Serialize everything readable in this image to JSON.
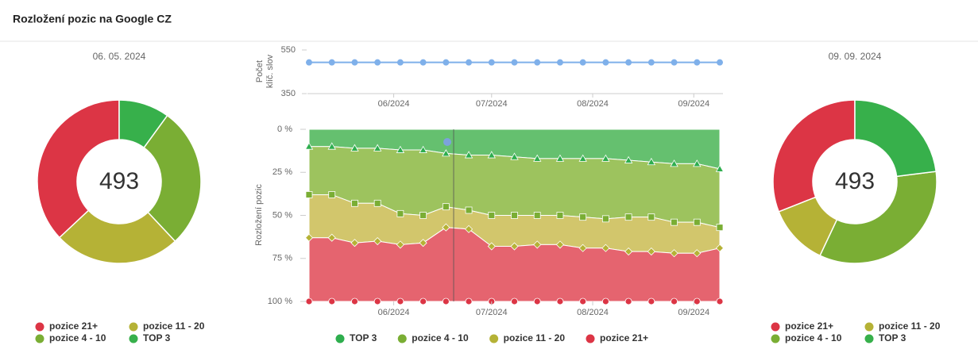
{
  "title": "Rozložení pozic na Google CZ",
  "chart_data": [
    {
      "type": "donut",
      "subtitle": "06. 05. 2024",
      "total": 493,
      "categories": [
        "pozice 21+",
        "pozice 11 - 20",
        "pozice 4 - 10",
        "TOP 3"
      ],
      "values": [
        37,
        25,
        28,
        10
      ],
      "colors": [
        "#dc3545",
        "#b5b236",
        "#7aae34",
        "#37b04b"
      ]
    },
    {
      "type": "line",
      "ylabel": [
        "Počet",
        "klíč. slov"
      ],
      "categories": [
        null,
        null,
        null,
        null,
        null,
        null,
        null,
        null,
        null,
        null,
        null,
        null,
        null,
        null,
        null,
        null,
        null,
        null,
        null
      ],
      "values": [
        493,
        493,
        493,
        493,
        493,
        493,
        493,
        493,
        493,
        493,
        493,
        493,
        493,
        493,
        493,
        493,
        493,
        493,
        493
      ],
      "color": "#7fb0ea",
      "ylim": [
        350,
        550
      ],
      "yticks": [
        350,
        550
      ],
      "xticks": [
        {
          "value": 3.71,
          "label": "06/2024"
        },
        {
          "value": 8,
          "label": "07/2024"
        },
        {
          "value": 12.43,
          "label": "08/2024"
        },
        {
          "value": 16.86,
          "label": "09/2024"
        }
      ]
    },
    {
      "type": "stacked_area",
      "ylabel": "Rozložení pozic",
      "categories": [
        null,
        null,
        null,
        null,
        null,
        null,
        null,
        null,
        null,
        null,
        null,
        null,
        null,
        null,
        null,
        null,
        null,
        null,
        null
      ],
      "series": [
        {
          "name": "TOP 3",
          "color": "#65c06f",
          "marker_color": "#2eae4e",
          "marker": "triangle",
          "values": [
            10,
            10,
            11,
            11,
            12,
            12,
            14,
            15,
            15,
            16,
            17,
            17,
            17,
            17,
            18,
            19,
            20,
            20,
            23
          ]
        },
        {
          "name": "pozice 4 - 10",
          "color": "#9dc35e",
          "marker_color": "#7aae34",
          "marker": "square",
          "values": [
            28,
            28,
            32,
            32,
            37,
            38,
            31,
            32,
            35,
            34,
            33,
            33,
            34,
            35,
            33,
            32,
            34,
            34,
            34
          ]
        },
        {
          "name": "pozice 11 - 20",
          "color": "#d2c66c",
          "marker_color": "#b5b236",
          "marker": "diamond",
          "values": [
            25,
            25,
            23,
            22,
            18,
            16,
            12,
            11,
            18,
            18,
            17,
            17,
            18,
            17,
            20,
            20,
            18,
            18,
            12
          ]
        },
        {
          "name": "pozice 21+",
          "color": "#e5646f",
          "marker_color": "#dc3545",
          "marker": "circle",
          "values": [
            37,
            37,
            34,
            35,
            33,
            34,
            43,
            42,
            32,
            32,
            33,
            33,
            31,
            31,
            29,
            29,
            28,
            28,
            31
          ]
        }
      ],
      "ylim": [
        100,
        0
      ],
      "yticks": [
        {
          "value": 0,
          "label": "0 %"
        },
        {
          "value": 25,
          "label": "25 %"
        },
        {
          "value": 50,
          "label": "50 %"
        },
        {
          "value": 75,
          "label": "75 %"
        },
        {
          "value": 100,
          "label": "100 %"
        }
      ],
      "xticks": [
        {
          "value": 3.71,
          "label": "06/2024"
        },
        {
          "value": 8,
          "label": "07/2024"
        },
        {
          "value": 12.43,
          "label": "08/2024"
        },
        {
          "value": 16.86,
          "label": "09/2024"
        }
      ],
      "legend": "bottom"
    },
    {
      "type": "donut",
      "subtitle": "09. 09. 2024",
      "total": 493,
      "categories": [
        "pozice 21+",
        "pozice 11 - 20",
        "pozice 4 - 10",
        "TOP 3"
      ],
      "values": [
        31,
        12,
        34,
        23
      ],
      "colors": [
        "#dc3545",
        "#b5b236",
        "#7aae34",
        "#37b04b"
      ]
    }
  ]
}
